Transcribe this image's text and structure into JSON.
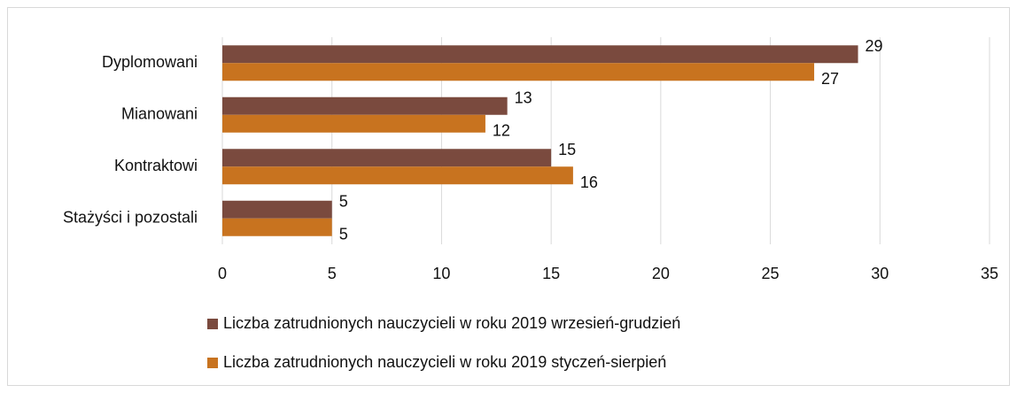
{
  "chart_data": {
    "type": "bar",
    "orientation": "horizontal",
    "categories": [
      "Dyplomowani",
      "Mianowani",
      "Kontraktowi",
      "Stażyści i pozostali"
    ],
    "series": [
      {
        "name": "Liczba zatrudnionych nauczycieli w roku 2019 wrzesień-grudzień",
        "color": "#7a4a3e",
        "values": [
          29,
          13,
          15,
          5
        ]
      },
      {
        "name": "Liczba zatrudnionych nauczycieli w roku 2019 styczeń-sierpień",
        "color": "#c8731f",
        "values": [
          27,
          12,
          16,
          5
        ]
      }
    ],
    "xlim": [
      0,
      35
    ],
    "xticks": [
      0,
      5,
      10,
      15,
      20,
      25,
      30,
      35
    ],
    "grid": true,
    "legend": "bottom"
  }
}
